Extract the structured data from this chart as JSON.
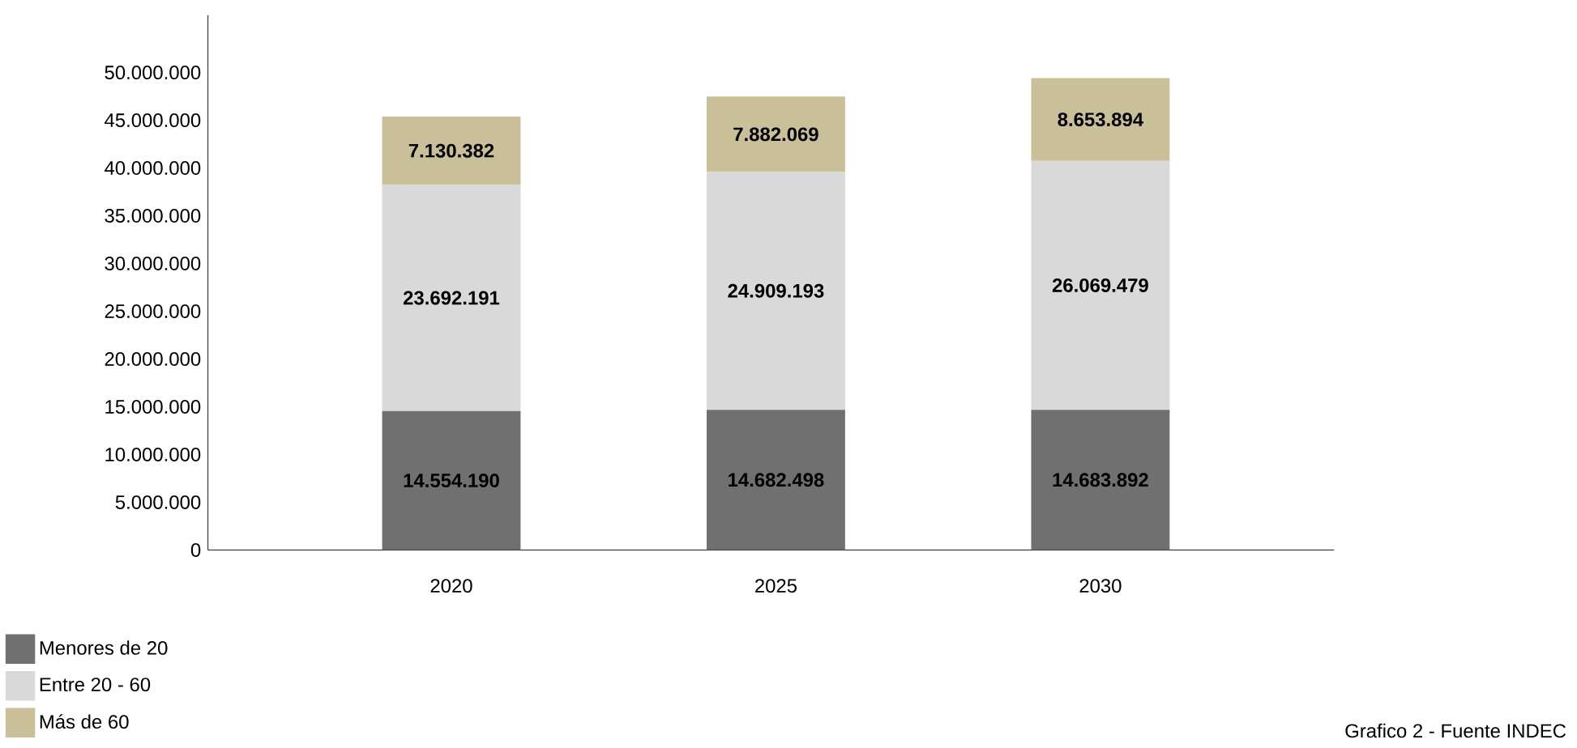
{
  "chart_data": {
    "type": "bar",
    "stacked": true,
    "categories": [
      "2020",
      "2025",
      "2030"
    ],
    "series": [
      {
        "name": "Menores de 20",
        "color": "#707070",
        "values": [
          14554190,
          14682498,
          14683892
        ],
        "value_labels": [
          "14.554.190",
          "14.682.498",
          "14.683.892"
        ]
      },
      {
        "name": "Entre 20 - 60",
        "color": "#d9d9d9",
        "values": [
          23692191,
          24909193,
          26069479
        ],
        "value_labels": [
          "23.692.191",
          "24.909.193",
          "26.069.479"
        ]
      },
      {
        "name": "Más de 60",
        "color": "#c9bf98",
        "values": [
          7130382,
          7882069,
          8653894
        ],
        "value_labels": [
          "7.130.382",
          "7.882.069",
          "8.653.894"
        ]
      }
    ],
    "ylim": [
      0,
      56000000
    ],
    "yticks": [
      0,
      {
        "value": 5000000,
        "label": "5.000.000"
      },
      {
        "value": 10000000,
        "label": "10.000.000"
      },
      {
        "value": 15000000,
        "label": "15.000.000"
      },
      {
        "value": 20000000,
        "label": "20.000.000"
      },
      {
        "value": 25000000,
        "label": "25.000.000"
      },
      {
        "value": 30000000,
        "label": "30.000.000"
      },
      {
        "value": 35000000,
        "label": "35.000.000"
      },
      {
        "value": 40000000,
        "label": "40.000.000"
      },
      {
        "value": 45000000,
        "label": "45.000.000"
      },
      {
        "value": 50000000,
        "label": "50.000.000"
      }
    ],
    "legend": "bottom left",
    "annotations": [
      "Grafico 2 - Fuente INDEC"
    ]
  }
}
